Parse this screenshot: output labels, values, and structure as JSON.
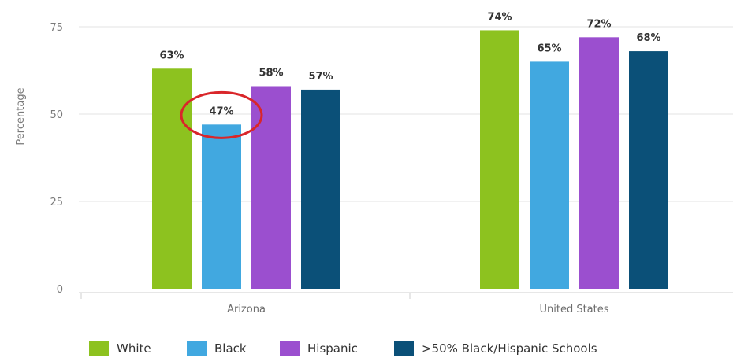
{
  "chart_data": {
    "type": "bar",
    "title": "",
    "xlabel": "",
    "ylabel": "Percentage",
    "ylim": [
      0,
      75
    ],
    "yticks": [
      0,
      25,
      50,
      75
    ],
    "grid": true,
    "legend_position": "bottom",
    "categories": [
      "Arizona",
      "United States"
    ],
    "series": [
      {
        "name": "White",
        "color": "#8dc21f",
        "values": [
          63,
          74
        ],
        "labels": [
          "63%",
          "74%"
        ]
      },
      {
        "name": "Black",
        "color": "#41a8e0",
        "values": [
          47,
          65
        ],
        "labels": [
          "47%",
          "65%"
        ]
      },
      {
        "name": "Hispanic",
        "color": "#9b4fcf",
        "values": [
          58,
          72
        ],
        "labels": [
          "58%",
          "72%"
        ]
      },
      {
        "name": ">50% Black/Hispanic Schools",
        "color": "#0b5078",
        "values": [
          57,
          68
        ],
        "labels": [
          "57%",
          "68%"
        ]
      }
    ],
    "annotations": [
      {
        "type": "circle-highlight",
        "category": "Arizona",
        "series": "Black",
        "color": "#d9262a"
      }
    ]
  }
}
